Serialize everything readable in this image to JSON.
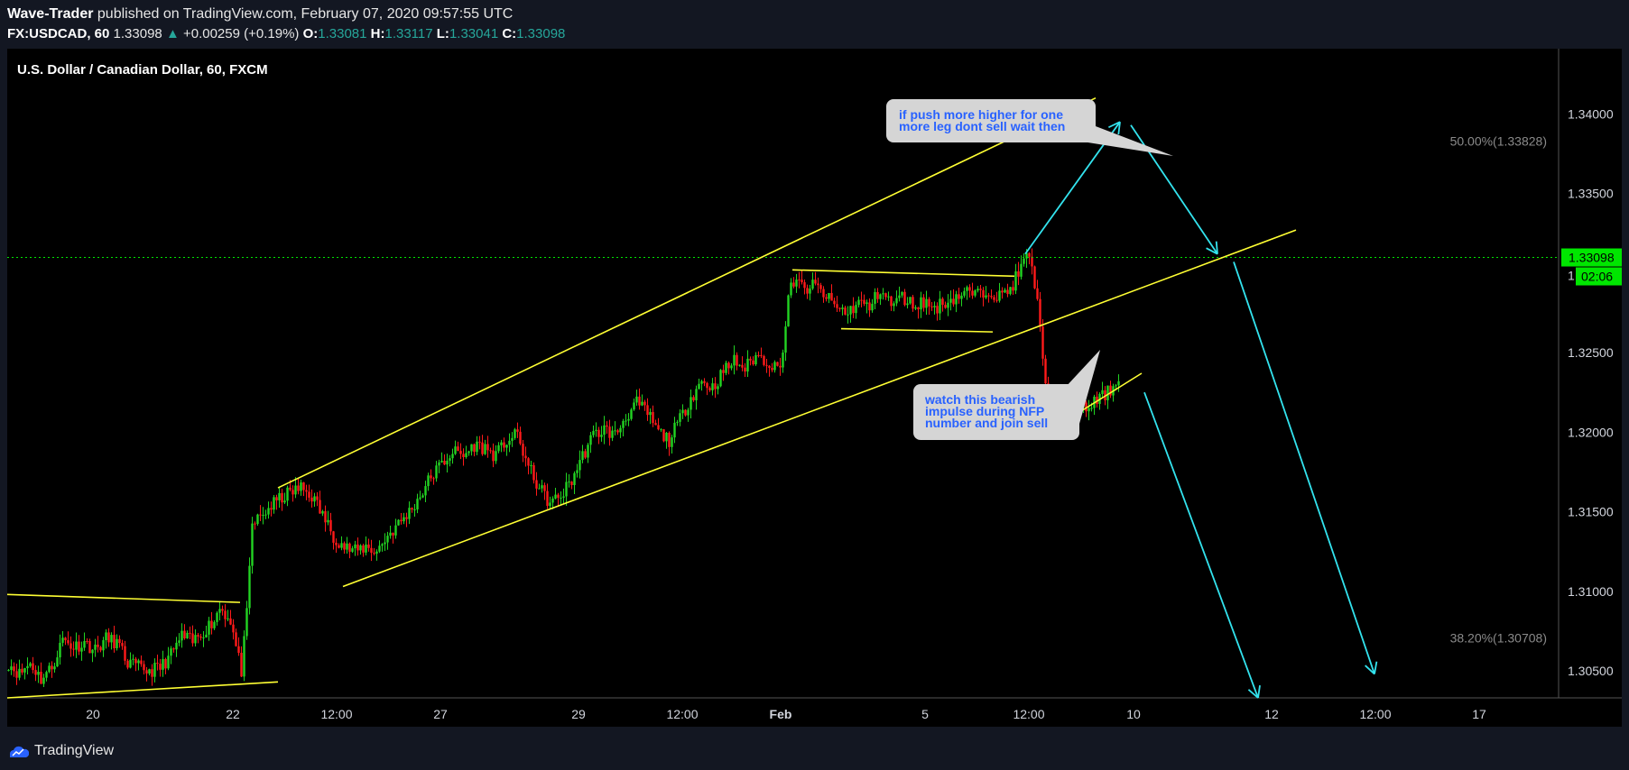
{
  "header": {
    "author": "Wave-Trader",
    "published": "published on TradingView.com, February 07, 2020 09:57:55 UTC",
    "symbol": "FX:USDCAD, 60",
    "last": "1.33098",
    "change": "+0.00259 (+0.19%)",
    "o_label": "O:",
    "o": "1.33081",
    "h_label": "H:",
    "h": "1.33117",
    "l_label": "L:",
    "l": "1.33041",
    "c_label": "C:",
    "c": "1.33098"
  },
  "footer": {
    "brand": "TradingView"
  },
  "chart_data": {
    "type": "candlestick",
    "title": "U.S. Dollar / Canadian Dollar, 60, FXCM",
    "ylim": [
      1.3033,
      1.3441
    ],
    "y_ticks": [
      {
        "label": "1.34000",
        "v": 1.34
      },
      {
        "label": "1.33500",
        "v": 1.335
      },
      {
        "label": "1.32500",
        "v": 1.325
      },
      {
        "label": "1.32000",
        "v": 1.32
      },
      {
        "label": "1.31500",
        "v": 1.315
      },
      {
        "label": "1.31000",
        "v": 1.31
      },
      {
        "label": "1.30500",
        "v": 1.305
      }
    ],
    "x_ticks": [
      "20",
      "22",
      "12:00",
      "27",
      "29",
      "12:00",
      "Feb",
      "5",
      "12:00",
      "10",
      "12",
      "12:00",
      "17"
    ],
    "price_tag": {
      "value": 1.33098,
      "label": "1.33098",
      "countdown": "02:06",
      "partial": "1"
    },
    "colors": {
      "up": "#22d422",
      "down": "#ff1a1a",
      "trend": "#ffff33",
      "arrow": "#33e3ee",
      "tag": "#00e600",
      "bg": "#000000"
    },
    "price_path": [
      [
        0,
        1.3055
      ],
      [
        4,
        1.3048
      ],
      [
        8,
        1.3055
      ],
      [
        12,
        1.3045
      ],
      [
        16,
        1.3052
      ],
      [
        20,
        1.307
      ],
      [
        24,
        1.3065
      ],
      [
        28,
        1.3068
      ],
      [
        32,
        1.3063
      ],
      [
        36,
        1.307
      ],
      [
        40,
        1.3068
      ],
      [
        44,
        1.3055
      ],
      [
        48,
        1.3052
      ],
      [
        52,
        1.305
      ],
      [
        56,
        1.3052
      ],
      [
        60,
        1.306
      ],
      [
        64,
        1.3072
      ],
      [
        68,
        1.3068
      ],
      [
        72,
        1.3075
      ],
      [
        76,
        1.3082
      ],
      [
        78,
        1.309
      ],
      [
        82,
        1.3082
      ],
      [
        84,
        1.3065
      ],
      [
        86,
        1.305
      ],
      [
        88,
        1.3085
      ],
      [
        90,
        1.3142
      ],
      [
        94,
        1.3148
      ],
      [
        96,
        1.3152
      ],
      [
        100,
        1.3158
      ],
      [
        104,
        1.3162
      ],
      [
        108,
        1.3165
      ],
      [
        112,
        1.316
      ],
      [
        116,
        1.3148
      ],
      [
        120,
        1.3135
      ],
      [
        124,
        1.3128
      ],
      [
        128,
        1.3125
      ],
      [
        132,
        1.3128
      ],
      [
        136,
        1.3125
      ],
      [
        140,
        1.3135
      ],
      [
        144,
        1.3142
      ],
      [
        148,
        1.315
      ],
      [
        152,
        1.316
      ],
      [
        156,
        1.3172
      ],
      [
        160,
        1.318
      ],
      [
        164,
        1.3188
      ],
      [
        168,
        1.3185
      ],
      [
        172,
        1.3192
      ],
      [
        176,
        1.319
      ],
      [
        180,
        1.3185
      ],
      [
        184,
        1.3195
      ],
      [
        188,
        1.3198
      ],
      [
        192,
        1.3178
      ],
      [
        196,
        1.3165
      ],
      [
        200,
        1.3155
      ],
      [
        204,
        1.316
      ],
      [
        208,
        1.317
      ],
      [
        212,
        1.3185
      ],
      [
        216,
        1.3198
      ],
      [
        220,
        1.3202
      ],
      [
        224,
        1.3198
      ],
      [
        228,
        1.321
      ],
      [
        232,
        1.3218
      ],
      [
        236,
        1.3212
      ],
      [
        240,
        1.32
      ],
      [
        244,
        1.3195
      ],
      [
        248,
        1.3208
      ],
      [
        252,
        1.3222
      ],
      [
        256,
        1.3232
      ],
      [
        260,
        1.3228
      ],
      [
        264,
        1.3238
      ],
      [
        268,
        1.3245
      ],
      [
        272,
        1.324
      ],
      [
        276,
        1.3248
      ],
      [
        280,
        1.3245
      ],
      [
        284,
        1.324
      ],
      [
        286,
        1.325
      ],
      [
        288,
        1.3285
      ],
      [
        290,
        1.3295
      ],
      [
        294,
        1.329
      ],
      [
        298,
        1.3292
      ],
      [
        302,
        1.3285
      ],
      [
        306,
        1.3278
      ],
      [
        310,
        1.3275
      ],
      [
        314,
        1.3282
      ],
      [
        318,
        1.3278
      ],
      [
        322,
        1.329
      ],
      [
        326,
        1.328
      ],
      [
        330,
        1.3285
      ],
      [
        334,
        1.328
      ],
      [
        338,
        1.3282
      ],
      [
        342,
        1.3278
      ],
      [
        346,
        1.3282
      ],
      [
        350,
        1.3285
      ],
      [
        354,
        1.3288
      ],
      [
        358,
        1.3286
      ],
      [
        362,
        1.329
      ],
      [
        366,
        1.3285
      ],
      [
        370,
        1.329
      ],
      [
        373,
        1.33
      ],
      [
        376,
        1.331
      ],
      [
        378,
        1.3305
      ],
      [
        380,
        1.328
      ],
      [
        382,
        1.325
      ],
      [
        384,
        1.3215
      ],
      [
        386,
        1.3205
      ],
      [
        390,
        1.3208
      ],
      [
        394,
        1.3212
      ],
      [
        398,
        1.3215
      ],
      [
        402,
        1.322
      ],
      [
        406,
        1.3225
      ],
      [
        410,
        1.3232
      ]
    ],
    "trendlines": [
      {
        "name": "channel-upper",
        "p": [
          [
            100,
            1.3165
          ],
          [
            402,
            1.341
          ]
        ]
      },
      {
        "name": "channel-lower",
        "p": [
          [
            124,
            1.3103
          ],
          [
            476,
            1.3327
          ]
        ]
      },
      {
        "name": "range-top",
        "p": [
          [
            290,
            1.3302
          ],
          [
            372,
            1.3298
          ]
        ]
      },
      {
        "name": "range-bottom",
        "p": [
          [
            308,
            1.3265
          ],
          [
            364,
            1.3263
          ]
        ]
      },
      {
        "name": "left-top",
        "p": [
          [
            0,
            1.3098
          ],
          [
            86,
            1.3093
          ]
        ]
      },
      {
        "name": "left-bottom",
        "p": [
          [
            0,
            1.3033
          ],
          [
            100,
            1.3043
          ]
        ]
      },
      {
        "name": "flag-support",
        "p": [
          [
            387,
            1.3203
          ],
          [
            419,
            1.3237
          ]
        ]
      }
    ],
    "arrows": [
      {
        "p": [
          [
            376,
            1.3312
          ],
          [
            411,
            1.3395
          ]
        ],
        "head": true
      },
      {
        "p": [
          [
            415,
            1.3393
          ],
          [
            447,
            1.3312
          ]
        ],
        "head": true
      },
      {
        "p": [
          [
            453,
            1.3307
          ],
          [
            505,
            1.3048
          ]
        ],
        "head": true
      },
      {
        "p": [
          [
            420,
            1.3225
          ],
          [
            462,
            1.3033
          ]
        ],
        "head": true
      }
    ],
    "annotations": [
      {
        "lines": [
          "if push more higher for one",
          "more leg dont sell wait  then"
        ]
      },
      {
        "lines": [
          "watch this bearish",
          "impulse during NFP",
          "number and join sell"
        ]
      }
    ],
    "fib_labels": [
      {
        "text": "50.00%(1.33828)",
        "v": 1.33828
      },
      {
        "text": "38.20%(1.30708)",
        "v": 1.30708
      }
    ]
  }
}
